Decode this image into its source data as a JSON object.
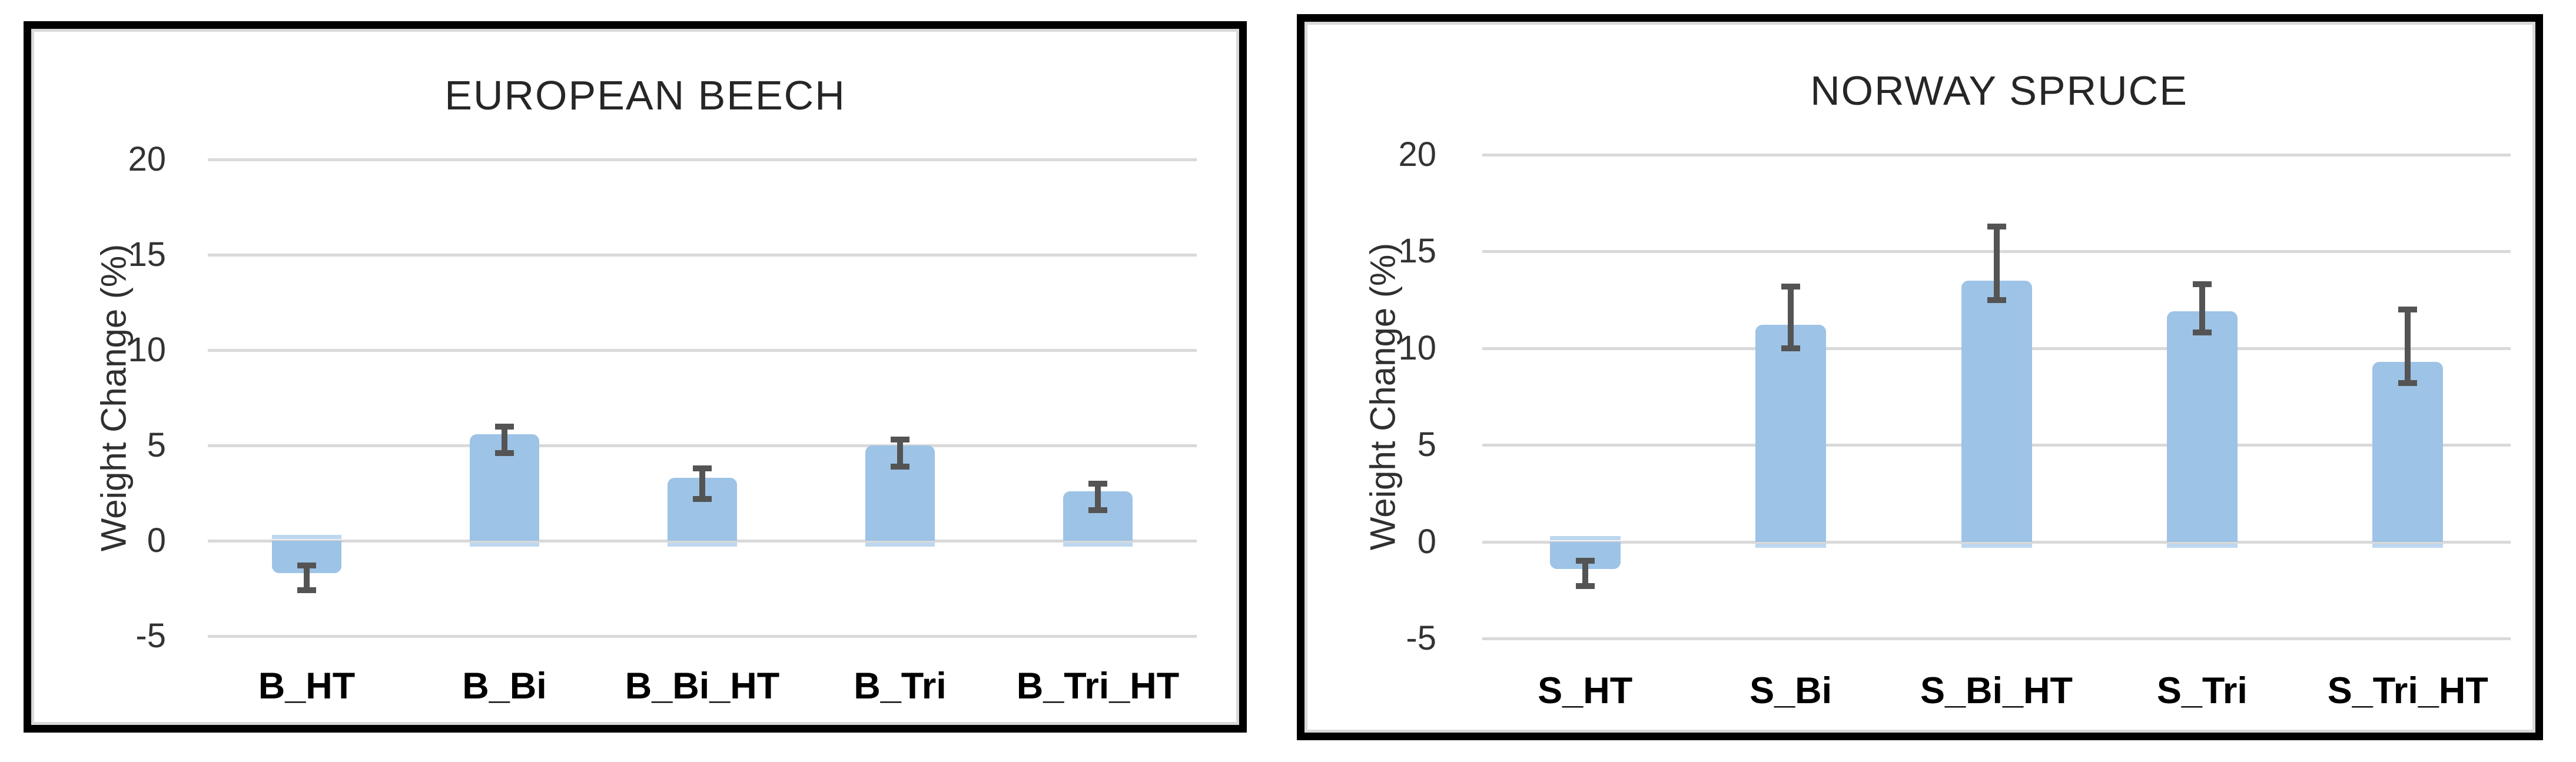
{
  "page": {
    "background_color": "#ffffff",
    "description": "Two Excel-style column charts with error bars comparing weight change of treated wood samples"
  },
  "colors": {
    "bar_fill": "#9DC3E6",
    "bar_edge_lip": "#BDD7EE",
    "error_bar": "#545454",
    "gridline": "#D9D9D9",
    "panel_border": "#000000",
    "inner_border": "#D9D9D9",
    "title_text": "#262626",
    "tick_text": "#333333",
    "category_text": "#000000"
  },
  "chart_data": [
    {
      "type": "bar",
      "title": "EUROPEAN BEECH",
      "ylabel": "Weight Change (%)",
      "xlabel": "",
      "categories": [
        "B_HT",
        "B_Bi",
        "B_Bi_HT",
        "B_Tri",
        "B_Tri_HT"
      ],
      "values": [
        -1.7,
        5.6,
        3.3,
        5.0,
        2.6
      ],
      "error_high": [
        -1.3,
        6.0,
        3.8,
        5.3,
        3.0
      ],
      "error_low": [
        -2.6,
        4.6,
        2.2,
        3.9,
        1.6
      ],
      "y_ticks": [
        20,
        15,
        10,
        5,
        0,
        -5
      ],
      "ylim": [
        -5,
        20
      ],
      "grid": true,
      "legend": null
    },
    {
      "type": "bar",
      "title": "NORWAY SPRUCE",
      "ylabel": "Weight Change (%)",
      "xlabel": "",
      "categories": [
        "S_HT",
        "S_Bi",
        "S_Bi_HT",
        "S_Tri",
        "S_Tri_HT"
      ],
      "values": [
        -1.4,
        11.2,
        13.5,
        11.9,
        9.3
      ],
      "error_high": [
        -1.0,
        13.2,
        16.3,
        13.3,
        12.0
      ],
      "error_low": [
        -2.3,
        10.0,
        12.5,
        10.8,
        8.2
      ],
      "y_ticks": [
        20,
        15,
        10,
        5,
        0,
        -5
      ],
      "ylim": [
        -5,
        20
      ],
      "grid": true,
      "legend": null
    }
  ]
}
